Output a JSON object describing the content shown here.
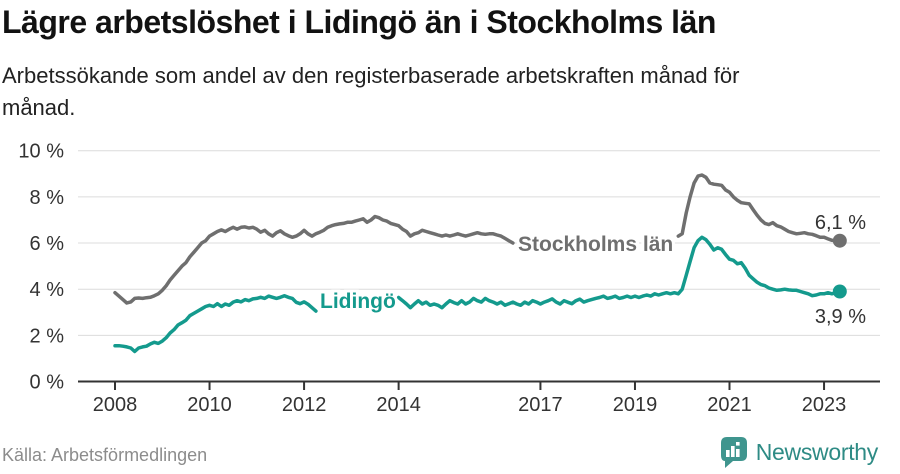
{
  "header": {
    "title": "Lägre arbetslöshet i Lidingö än i Stockholms län",
    "subtitle": "Arbetssökande som andel av den registerbaserade arbetskraften månad för månad."
  },
  "chart_data": {
    "type": "line",
    "x_start_year": 2008,
    "x_frequency": "monthly",
    "x_end": "2023-05",
    "x_ticks": [
      2008,
      2010,
      2012,
      2014,
      2017,
      2019,
      2021,
      2023
    ],
    "y_ticks": [
      "0 %",
      "2 %",
      "4 %",
      "6 %",
      "8 %",
      "10 %"
    ],
    "y_tick_values": [
      0,
      2,
      4,
      6,
      8,
      10
    ],
    "ylim": [
      0,
      10
    ],
    "grid": true,
    "colors": {
      "axis": "#333333",
      "grid": "#dcdcdc",
      "tick_text": "#333333"
    },
    "series": [
      {
        "name": "Stockholms län",
        "color": "#6f6f6f",
        "end_label": "6,1 %",
        "end_value": 6.1,
        "values": [
          3.85,
          3.7,
          3.55,
          3.4,
          3.45,
          3.6,
          3.62,
          3.6,
          3.63,
          3.65,
          3.72,
          3.8,
          3.95,
          4.15,
          4.4,
          4.6,
          4.8,
          5.0,
          5.15,
          5.4,
          5.6,
          5.8,
          6.0,
          6.1,
          6.3,
          6.4,
          6.5,
          6.57,
          6.5,
          6.6,
          6.68,
          6.6,
          6.68,
          6.7,
          6.65,
          6.68,
          6.6,
          6.47,
          6.55,
          6.4,
          6.3,
          6.45,
          6.53,
          6.4,
          6.32,
          6.25,
          6.3,
          6.4,
          6.55,
          6.4,
          6.3,
          6.4,
          6.47,
          6.55,
          6.68,
          6.75,
          6.8,
          6.83,
          6.85,
          6.9,
          6.9,
          6.95,
          7.0,
          7.05,
          6.9,
          7.0,
          7.15,
          7.1,
          7.0,
          6.95,
          6.85,
          6.8,
          6.75,
          6.6,
          6.5,
          6.3,
          6.4,
          6.45,
          6.55,
          6.5,
          6.45,
          6.4,
          6.35,
          6.3,
          6.35,
          6.3,
          6.35,
          6.4,
          6.35,
          6.3,
          6.35,
          6.4,
          6.45,
          6.4,
          6.38,
          6.4,
          6.4,
          6.35,
          6.3,
          6.2,
          6.1,
          6.0,
          6.02,
          6.05,
          6.05,
          6.03,
          6.0,
          6.0,
          6.0,
          6.0,
          6.02,
          6.05,
          6.03,
          6.0,
          6.0,
          6.02,
          6.0,
          6.0,
          6.0,
          6.0,
          6.0,
          5.98,
          6.0,
          6.02,
          6.0,
          5.98,
          6.0,
          6.0,
          6.02,
          6.05,
          6.05,
          6.08,
          6.1,
          6.12,
          6.15,
          6.15,
          6.18,
          6.2,
          6.2,
          6.2,
          6.22,
          6.25,
          6.28,
          6.3,
          6.4,
          7.3,
          8.0,
          8.6,
          8.9,
          8.95,
          8.85,
          8.6,
          8.55,
          8.53,
          8.5,
          8.3,
          8.2,
          8.0,
          7.85,
          7.75,
          7.72,
          7.7,
          7.45,
          7.2,
          7.0,
          6.85,
          6.8,
          6.88,
          6.75,
          6.7,
          6.6,
          6.5,
          6.45,
          6.4,
          6.42,
          6.45,
          6.4,
          6.38,
          6.32,
          6.25,
          6.25,
          6.18,
          6.12,
          6.1,
          6.1
        ]
      },
      {
        "name": "Lidingö",
        "color": "#149a8d",
        "end_label": "3,9 %",
        "end_value": 3.9,
        "values": [
          1.55,
          1.55,
          1.53,
          1.5,
          1.45,
          1.3,
          1.45,
          1.5,
          1.53,
          1.63,
          1.7,
          1.65,
          1.75,
          1.9,
          2.1,
          2.25,
          2.45,
          2.55,
          2.65,
          2.85,
          2.95,
          3.05,
          3.15,
          3.25,
          3.3,
          3.25,
          3.37,
          3.25,
          3.36,
          3.3,
          3.44,
          3.5,
          3.45,
          3.55,
          3.5,
          3.58,
          3.6,
          3.65,
          3.6,
          3.7,
          3.65,
          3.6,
          3.65,
          3.72,
          3.65,
          3.6,
          3.43,
          3.37,
          3.45,
          3.35,
          3.2,
          3.05,
          3.0,
          3.05,
          3.1,
          3.15,
          3.2,
          3.25,
          3.3,
          3.35,
          3.4,
          3.45,
          3.5,
          3.5,
          3.55,
          3.55,
          3.6,
          3.6,
          3.62,
          3.63,
          3.64,
          3.65,
          3.64,
          3.5,
          3.36,
          3.2,
          3.36,
          3.5,
          3.36,
          3.44,
          3.3,
          3.36,
          3.3,
          3.2,
          3.36,
          3.5,
          3.42,
          3.36,
          3.5,
          3.36,
          3.44,
          3.6,
          3.5,
          3.44,
          3.6,
          3.5,
          3.44,
          3.36,
          3.44,
          3.3,
          3.37,
          3.44,
          3.36,
          3.3,
          3.44,
          3.36,
          3.5,
          3.44,
          3.36,
          3.44,
          3.5,
          3.58,
          3.44,
          3.36,
          3.5,
          3.43,
          3.37,
          3.5,
          3.57,
          3.44,
          3.5,
          3.55,
          3.6,
          3.64,
          3.7,
          3.6,
          3.64,
          3.7,
          3.6,
          3.64,
          3.7,
          3.64,
          3.7,
          3.64,
          3.7,
          3.75,
          3.7,
          3.8,
          3.75,
          3.8,
          3.85,
          3.8,
          3.85,
          3.8,
          4.0,
          4.6,
          5.2,
          5.8,
          6.1,
          6.25,
          6.15,
          5.95,
          5.7,
          5.8,
          5.73,
          5.5,
          5.3,
          5.25,
          5.1,
          5.15,
          4.9,
          4.6,
          4.45,
          4.3,
          4.2,
          4.15,
          4.05,
          4.0,
          3.95,
          3.97,
          4.0,
          3.97,
          3.95,
          3.95,
          3.9,
          3.85,
          3.8,
          3.72,
          3.75,
          3.8,
          3.8,
          3.85,
          3.8,
          3.85,
          3.9
        ]
      }
    ]
  },
  "footer": {
    "source": "Källa: Arbetsförmedlingen",
    "brand": "Newsworthy",
    "brand_color": "#2e8b85",
    "logo_icon": "bar-chart-speech-bubble-icon"
  }
}
